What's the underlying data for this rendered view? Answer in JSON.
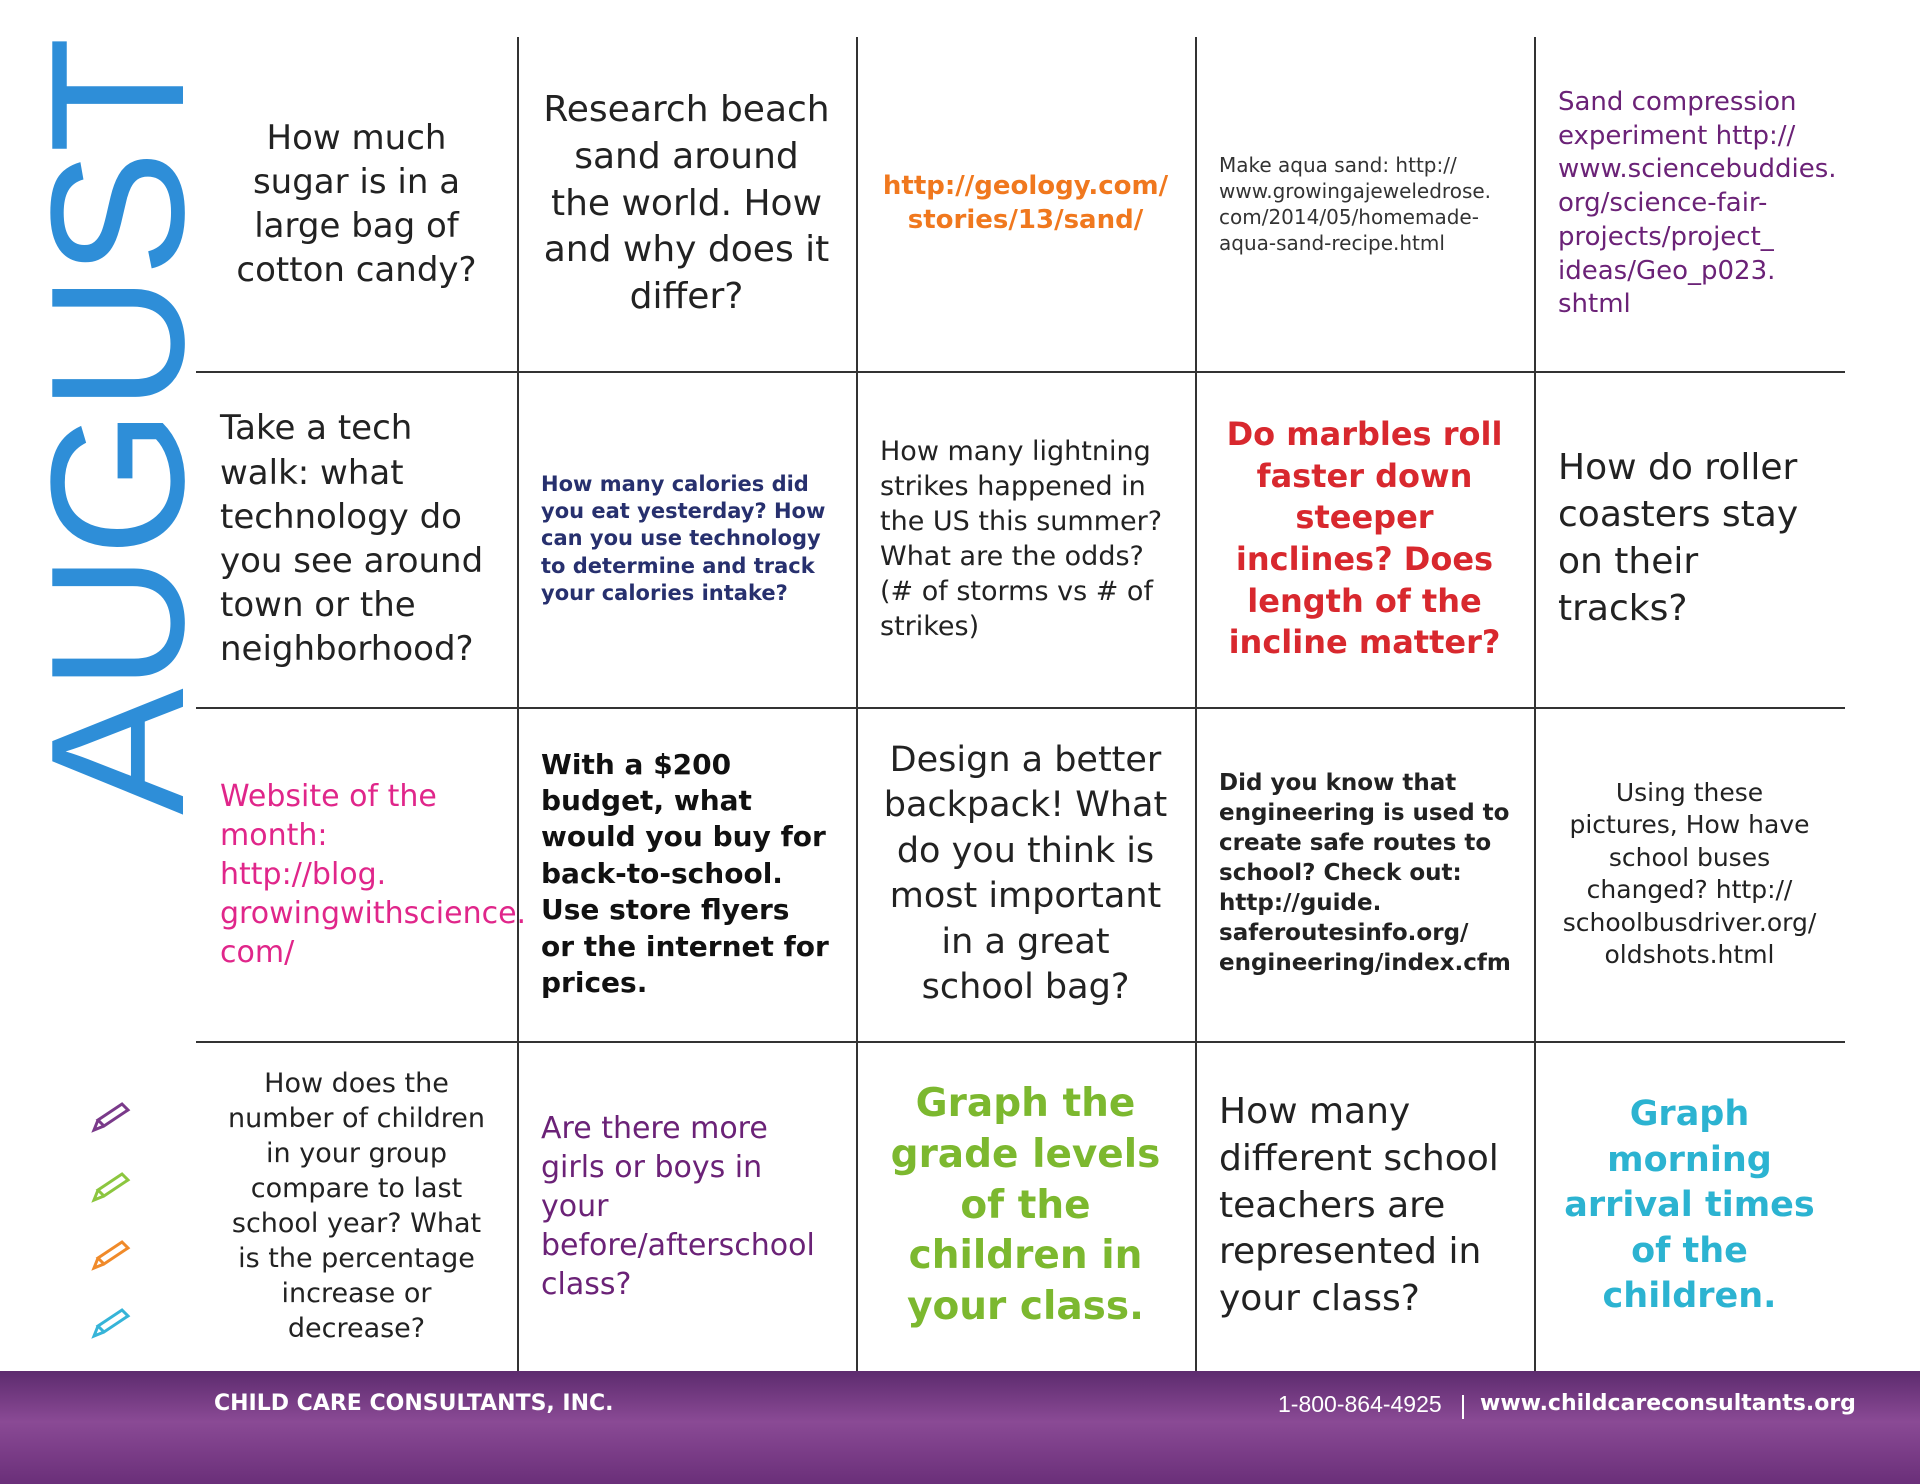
{
  "title": "AUGUST",
  "grid": {
    "rows": [
      [
        "How much sugar is in a large bag of cotton candy?",
        "Research beach sand around the world. How and why does it differ?",
        "http://geology.com/ stories/13/sand/",
        "Make aqua sand: http:// www.growingajeweledrose. com/2014/05/homemade- aqua-sand-recipe.html",
        "Sand compression experiment http:// www.sciencebuddies. org/science-fair- projects/project_ ideas/Geo_p023. shtml"
      ],
      [
        "Take a tech walk: what technology do you see around town or the neighborhood?",
        "How many calories did you eat yesterday? How can you use technology to determine and track your calories intake?",
        "How many lightning strikes happened in the US this summer? What are the odds? (# of storms vs # of strikes)",
        "Do marbles roll faster down steeper inclines? Does length of the incline matter?",
        "How do roller coasters stay on their tracks?"
      ],
      [
        "Website of the month: http://blog. growingwithscience. com/",
        "With a $200 budget, what would you buy for back-to-school. Use store flyers or the internet for prices.",
        "Design a better backpack! What do you think is most important in a great school bag?",
        "Did you know that engineering is used to create safe routes to school? Check out: http://guide. saferoutesinfo.org/ engineering/index.cfm",
        "Using these pictures, How have school buses changed? http:// schoolbusdriver.org/ oldshots.html"
      ],
      [
        "How does the number of children in your group compare to last school year? What is the percentage increase or decrease?",
        "Are there more girls or boys in your before/afterschool class?",
        "Graph the grade levels of the children in your class.",
        "How many different school teachers are represented in your class?",
        "Graph morning arrival times of the children."
      ]
    ]
  },
  "footer": {
    "company": "CHILD CARE CONSULTANTS, INC.",
    "phone": "1-800-864-4925",
    "website": "www.childcareconsultants.org"
  }
}
